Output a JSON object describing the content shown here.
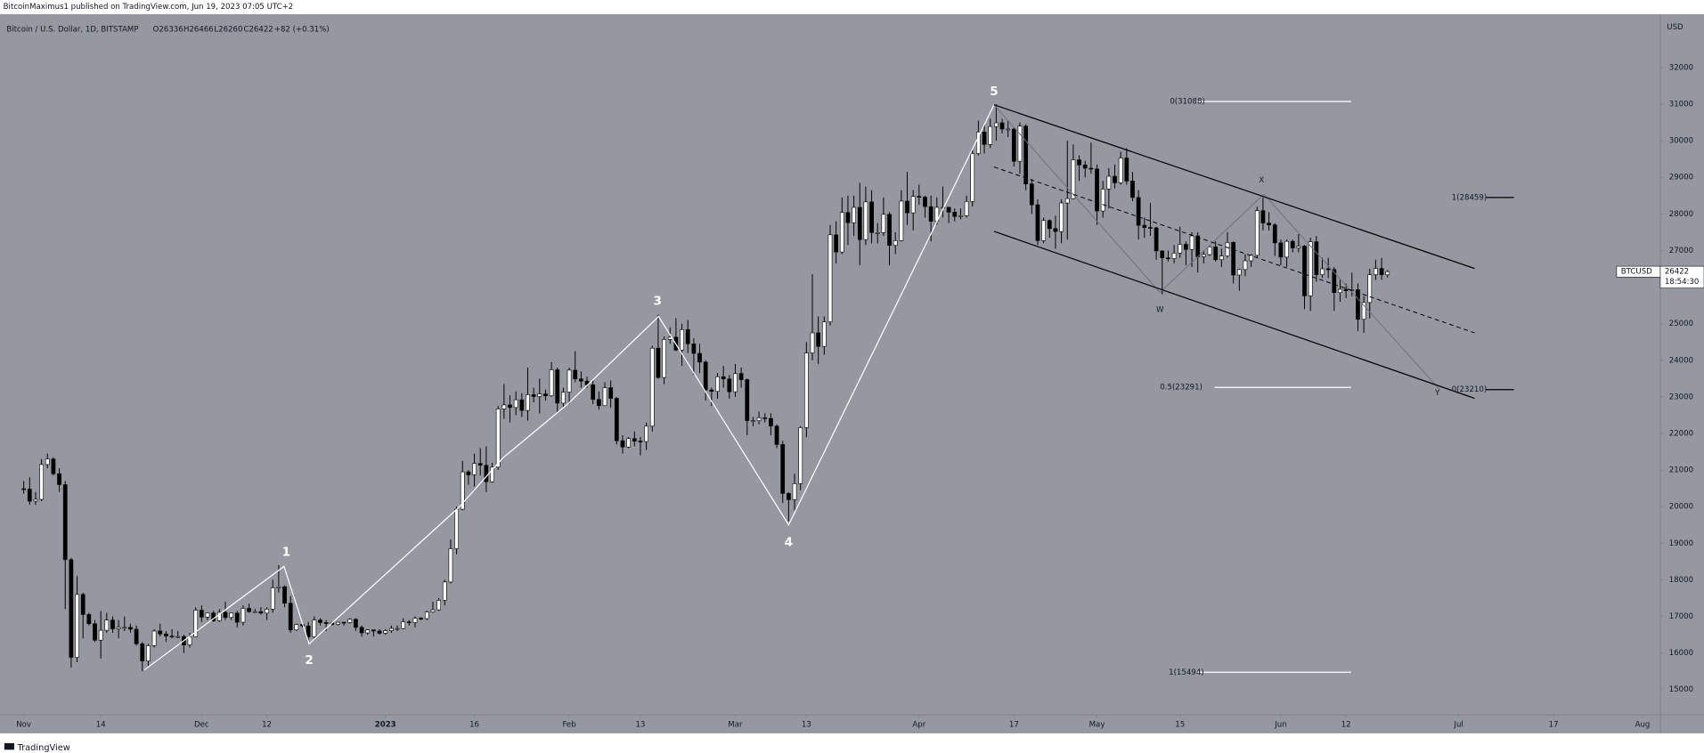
{
  "header": "BitcoinMaximus1 published on TradingView.com, Jun 19, 2023 07:05 UTC+2",
  "footer": "TradingView",
  "chart_data": {
    "type": "candlestick",
    "legend": "Bitcoin / U.S. Dollar, 1D, BITSTAMP",
    "ohlc_text": [
      "O26336",
      "H26466",
      "L26260",
      "C26422",
      "+82 (+0.31%)"
    ],
    "y_axis_label": "USD",
    "price_tag": {
      "symbol": "BTCUSD",
      "price": "26422",
      "countdown": "18:54:30"
    },
    "annotations": {
      "waves": [
        "1",
        "2",
        "3",
        "4",
        "5",
        "W",
        "X",
        "Y"
      ],
      "fibs": [
        "0(31088)",
        "1(28459)",
        "0.5(23291)",
        "0(23210)",
        "1(15494)"
      ]
    },
    "grid": false,
    "colors": {
      "up": "#ffffff",
      "down": "#000000",
      "wick": "#000000",
      "background": "#9598a1"
    },
    "xlim": [
      -4,
      276
    ],
    "xticks": [
      {
        "value": 0,
        "label": "Nov"
      },
      {
        "value": 13,
        "label": "14"
      },
      {
        "value": 30,
        "label": "Dec"
      },
      {
        "value": 41,
        "label": "12"
      },
      {
        "value": 61,
        "label": "2023"
      },
      {
        "value": 76,
        "label": "16"
      },
      {
        "value": 92,
        "label": "Feb"
      },
      {
        "value": 104,
        "label": "13"
      },
      {
        "value": 120,
        "label": "Mar"
      },
      {
        "value": 132,
        "label": "13"
      },
      {
        "value": 151,
        "label": "Apr"
      },
      {
        "value": 167,
        "label": "17"
      },
      {
        "value": 181,
        "label": "May"
      },
      {
        "value": 195,
        "label": "15"
      },
      {
        "value": 212,
        "label": "Jun"
      },
      {
        "value": 223,
        "label": "12"
      },
      {
        "value": 242,
        "label": "Jul"
      },
      {
        "value": 258,
        "label": "17"
      },
      {
        "value": 273,
        "label": "Aug"
      }
    ],
    "ylim": [
      14310,
      33460
    ],
    "yticks": [
      15000,
      16000,
      17000,
      18000,
      19000,
      20000,
      21000,
      22000,
      23000,
      24000,
      25000,
      27000,
      28000,
      29000,
      30000,
      31000,
      32000
    ],
    "candles": [
      [
        20490,
        20700,
        20350,
        20480
      ],
      [
        20480,
        20800,
        20050,
        20150
      ],
      [
        20150,
        20400,
        20050,
        20200
      ],
      [
        20200,
        21300,
        20150,
        21150
      ],
      [
        21150,
        21450,
        21050,
        21300
      ],
      [
        21300,
        21350,
        20850,
        20900
      ],
      [
        20900,
        21050,
        20400,
        20600
      ],
      [
        20600,
        20700,
        17200,
        18550
      ],
      [
        18550,
        18600,
        15600,
        15880
      ],
      [
        15880,
        18100,
        15750,
        17600
      ],
      [
        17600,
        17650,
        16400,
        17050
      ],
      [
        17050,
        17100,
        16750,
        16800
      ],
      [
        16800,
        16900,
        16300,
        16350
      ],
      [
        16350,
        17150,
        15850,
        16620
      ],
      [
        16620,
        17100,
        16550,
        16900
      ],
      [
        16900,
        17000,
        16550,
        16660
      ],
      [
        16660,
        16900,
        16400,
        16700
      ],
      [
        16700,
        17000,
        16600,
        16700
      ],
      [
        16700,
        16800,
        16550,
        16650
      ],
      [
        16650,
        16750,
        16200,
        16250
      ],
      [
        16250,
        16300,
        15500,
        15780
      ],
      [
        15780,
        16250,
        15650,
        16200
      ],
      [
        16200,
        16650,
        16150,
        16600
      ],
      [
        16600,
        16800,
        16450,
        16520
      ],
      [
        16520,
        16600,
        16300,
        16460
      ],
      [
        16460,
        16650,
        16400,
        16450
      ],
      [
        16450,
        16600,
        16400,
        16450
      ],
      [
        16450,
        16500,
        16000,
        16220
      ],
      [
        16220,
        16550,
        16150,
        16440
      ],
      [
        16440,
        17250,
        16430,
        17170
      ],
      [
        17170,
        17300,
        16850,
        16980
      ],
      [
        16980,
        17100,
        16900,
        17090
      ],
      [
        17090,
        17150,
        16850,
        16880
      ],
      [
        16880,
        17200,
        16850,
        17110
      ],
      [
        17110,
        17400,
        16900,
        16970
      ],
      [
        16970,
        17100,
        16900,
        17090
      ],
      [
        17090,
        17150,
        16700,
        16840
      ],
      [
        16840,
        17300,
        16750,
        17220
      ],
      [
        17220,
        17350,
        17100,
        17130
      ],
      [
        17130,
        17200,
        17100,
        17130
      ],
      [
        17130,
        17250,
        17050,
        17090
      ],
      [
        17090,
        17250,
        16900,
        17200
      ],
      [
        17200,
        18000,
        17100,
        17780
      ],
      [
        17780,
        18400,
        17650,
        17810
      ],
      [
        17810,
        17850,
        17250,
        17360
      ],
      [
        17360,
        17550,
        16550,
        16630
      ],
      [
        16630,
        16800,
        16600,
        16780
      ],
      [
        16780,
        16850,
        16700,
        16740
      ],
      [
        16740,
        16850,
        16300,
        16440
      ],
      [
        16440,
        17000,
        16400,
        16900
      ],
      [
        16900,
        16950,
        16750,
        16830
      ],
      [
        16830,
        16900,
        16600,
        16820
      ],
      [
        16820,
        16850,
        16750,
        16780
      ],
      [
        16780,
        16850,
        16750,
        16840
      ],
      [
        16840,
        16850,
        16750,
        16830
      ],
      [
        16830,
        16950,
        16800,
        16920
      ],
      [
        16920,
        16950,
        16600,
        16700
      ],
      [
        16700,
        16750,
        16450,
        16550
      ],
      [
        16550,
        16650,
        16500,
        16630
      ],
      [
        16630,
        16650,
        16450,
        16600
      ],
      [
        16600,
        16650,
        16500,
        16540
      ],
      [
        16540,
        16650,
        16500,
        16610
      ],
      [
        16610,
        16750,
        16550,
        16670
      ],
      [
        16670,
        16750,
        16600,
        16670
      ],
      [
        16670,
        16950,
        16650,
        16850
      ],
      [
        16850,
        16900,
        16750,
        16830
      ],
      [
        16830,
        17000,
        16700,
        16950
      ],
      [
        16950,
        16980,
        16900,
        16940
      ],
      [
        16940,
        17150,
        16900,
        17120
      ],
      [
        17120,
        17400,
        17100,
        17180
      ],
      [
        17180,
        17500,
        17150,
        17440
      ],
      [
        17440,
        18000,
        17300,
        17940
      ],
      [
        17940,
        19100,
        17900,
        18850
      ],
      [
        18850,
        20000,
        18700,
        19930
      ],
      [
        19930,
        21250,
        19900,
        20950
      ],
      [
        20950,
        21000,
        20600,
        20870
      ],
      [
        20870,
        21450,
        20550,
        21180
      ],
      [
        21180,
        21600,
        20850,
        21130
      ],
      [
        21130,
        21650,
        20400,
        20680
      ],
      [
        20680,
        21200,
        20650,
        21080
      ],
      [
        21080,
        22750,
        21000,
        22670
      ],
      [
        22670,
        23350,
        22400,
        22780
      ],
      [
        22780,
        23050,
        22300,
        22710
      ],
      [
        22710,
        23150,
        22500,
        22920
      ],
      [
        22920,
        23100,
        22450,
        22630
      ],
      [
        22630,
        23800,
        22350,
        23060
      ],
      [
        23060,
        23250,
        22850,
        23010
      ],
      [
        23010,
        23500,
        22550,
        23080
      ],
      [
        23080,
        23200,
        22900,
        23030
      ],
      [
        23030,
        23950,
        23000,
        23740
      ],
      [
        23740,
        23800,
        22550,
        22830
      ],
      [
        22830,
        23250,
        22700,
        23130
      ],
      [
        23130,
        23800,
        22800,
        23730
      ],
      [
        23730,
        24250,
        23400,
        23490
      ],
      [
        23490,
        23700,
        23250,
        23430
      ],
      [
        23430,
        23550,
        23250,
        23330
      ],
      [
        23330,
        23450,
        22800,
        22930
      ],
      [
        22930,
        23150,
        22650,
        22760
      ],
      [
        22760,
        23400,
        22750,
        23250
      ],
      [
        23250,
        23450,
        22700,
        22960
      ],
      [
        22960,
        23000,
        21700,
        21800
      ],
      [
        21800,
        21950,
        21450,
        21630
      ],
      [
        21630,
        21900,
        21600,
        21860
      ],
      [
        21860,
        22050,
        21650,
        21790
      ],
      [
        21790,
        21900,
        21400,
        21780
      ],
      [
        21780,
        22300,
        21550,
        22200
      ],
      [
        22200,
        24400,
        22050,
        24330
      ],
      [
        24330,
        25250,
        23500,
        23530
      ],
      [
        23530,
        24650,
        23350,
        24570
      ],
      [
        24570,
        24900,
        24450,
        24630
      ],
      [
        24630,
        25150,
        24250,
        24280
      ],
      [
        24280,
        25000,
        23850,
        24840
      ],
      [
        24840,
        25100,
        24200,
        24450
      ],
      [
        24450,
        24600,
        23600,
        24190
      ],
      [
        24190,
        24450,
        23650,
        23950
      ],
      [
        23950,
        24000,
        22900,
        23190
      ],
      [
        23190,
        23250,
        22750,
        23150
      ],
      [
        23150,
        23650,
        22950,
        23550
      ],
      [
        23550,
        23850,
        23250,
        23490
      ],
      [
        23490,
        23600,
        22950,
        23140
      ],
      [
        23140,
        23900,
        23000,
        23640
      ],
      [
        23640,
        23800,
        23250,
        23470
      ],
      [
        23470,
        23500,
        21950,
        22350
      ],
      [
        22350,
        22450,
        22200,
        22350
      ],
      [
        22350,
        22600,
        22250,
        22430
      ],
      [
        22430,
        22550,
        22300,
        22410
      ],
      [
        22410,
        22550,
        21950,
        22200
      ],
      [
        22200,
        22250,
        21600,
        21700
      ],
      [
        21700,
        21800,
        20100,
        20360
      ],
      [
        20360,
        20400,
        19600,
        20190
      ],
      [
        20190,
        20900,
        19900,
        20630
      ],
      [
        20630,
        22200,
        20450,
        22160
      ],
      [
        22160,
        24500,
        21900,
        24200
      ],
      [
        24200,
        26350,
        24000,
        24750
      ],
      [
        24750,
        25200,
        23900,
        24380
      ],
      [
        24380,
        25200,
        24150,
        25050
      ],
      [
        25050,
        27700,
        24950,
        27430
      ],
      [
        27430,
        27800,
        26650,
        26960
      ],
      [
        26960,
        28450,
        26900,
        28040
      ],
      [
        28040,
        28500,
        27150,
        27760
      ],
      [
        27760,
        28500,
        27400,
        28180
      ],
      [
        28180,
        28850,
        26600,
        27300
      ],
      [
        27300,
        28750,
        27150,
        28330
      ],
      [
        28330,
        28650,
        27200,
        27490
      ],
      [
        27490,
        27750,
        27200,
        27490
      ],
      [
        27490,
        28450,
        27400,
        27990
      ],
      [
        27990,
        28050,
        26600,
        27140
      ],
      [
        27140,
        27500,
        26900,
        27270
      ],
      [
        27270,
        28650,
        27250,
        28350
      ],
      [
        28350,
        29150,
        27700,
        28030
      ],
      [
        28030,
        28650,
        27550,
        28480
      ],
      [
        28480,
        28800,
        28250,
        28460
      ],
      [
        28460,
        28500,
        27900,
        28200
      ],
      [
        28200,
        28500,
        27250,
        27800
      ],
      [
        27800,
        28450,
        27700,
        28180
      ],
      [
        28180,
        28750,
        27900,
        28180
      ],
      [
        28180,
        28200,
        27750,
        28050
      ],
      [
        28050,
        28150,
        27800,
        27930
      ],
      [
        27930,
        28150,
        27850,
        27950
      ],
      [
        27950,
        28500,
        27900,
        28340
      ],
      [
        28340,
        29750,
        28200,
        29650
      ],
      [
        29650,
        30550,
        29600,
        30240
      ],
      [
        30240,
        30450,
        29650,
        29900
      ],
      [
        29900,
        30600,
        29800,
        30390
      ],
      [
        30390,
        31000,
        30000,
        30490
      ],
      [
        30490,
        30600,
        30200,
        30320
      ],
      [
        30320,
        30550,
        30100,
        30320
      ],
      [
        30320,
        30350,
        29300,
        29440
      ],
      [
        29440,
        30500,
        29100,
        30400
      ],
      [
        30400,
        30450,
        28650,
        28820
      ],
      [
        28820,
        28950,
        28000,
        28250
      ],
      [
        28250,
        28400,
        27150,
        27270
      ],
      [
        27270,
        27900,
        27200,
        27820
      ],
      [
        27820,
        27850,
        27350,
        27600
      ],
      [
        27600,
        27950,
        27050,
        27520
      ],
      [
        27520,
        28400,
        27200,
        28300
      ],
      [
        28300,
        30000,
        27300,
        28420
      ],
      [
        28420,
        29900,
        28400,
        29480
      ],
      [
        29480,
        29600,
        28900,
        29340
      ],
      [
        29340,
        29450,
        29000,
        29250
      ],
      [
        29250,
        29950,
        29100,
        29230
      ],
      [
        29230,
        29350,
        27700,
        28080
      ],
      [
        28080,
        28900,
        27900,
        28680
      ],
      [
        28680,
        29250,
        28150,
        29030
      ],
      [
        29030,
        29350,
        28700,
        28850
      ],
      [
        28850,
        29700,
        28800,
        29530
      ],
      [
        29530,
        29800,
        28800,
        28900
      ],
      [
        28900,
        29150,
        28350,
        28450
      ],
      [
        28450,
        28650,
        27300,
        27690
      ],
      [
        27690,
        27900,
        27350,
        27630
      ],
      [
        27630,
        28300,
        27400,
        27620
      ],
      [
        27620,
        27650,
        26750,
        26990
      ],
      [
        26990,
        27000,
        25800,
        26800
      ],
      [
        26800,
        27000,
        26700,
        26780
      ],
      [
        26780,
        27150,
        26650,
        26930
      ],
      [
        26930,
        27650,
        26800,
        27170
      ],
      [
        27170,
        27250,
        26600,
        27030
      ],
      [
        27030,
        27500,
        26550,
        27400
      ],
      [
        27400,
        27500,
        26400,
        26830
      ],
      [
        26830,
        27000,
        26650,
        26890
      ],
      [
        26890,
        27150,
        26850,
        27100
      ],
      [
        27100,
        27250,
        26700,
        26750
      ],
      [
        26750,
        27050,
        26550,
        26850
      ],
      [
        26850,
        27500,
        26800,
        27220
      ],
      [
        27220,
        27250,
        26100,
        26330
      ],
      [
        26330,
        26500,
        25900,
        26480
      ],
      [
        26480,
        26900,
        26300,
        26720
      ],
      [
        26720,
        26900,
        26550,
        26870
      ],
      [
        26870,
        28200,
        26800,
        28090
      ],
      [
        28090,
        28450,
        27550,
        27750
      ],
      [
        27750,
        28050,
        27550,
        27700
      ],
      [
        27700,
        27750,
        26850,
        27210
      ],
      [
        27210,
        27300,
        26600,
        26820
      ],
      [
        26820,
        27300,
        26550,
        27250
      ],
      [
        27250,
        27300,
        26950,
        27070
      ],
      [
        27070,
        27450,
        26950,
        27120
      ],
      [
        27120,
        27150,
        25400,
        25760
      ],
      [
        25760,
        27350,
        25350,
        27240
      ],
      [
        27240,
        27400,
        26150,
        26340
      ],
      [
        26340,
        26800,
        26250,
        26500
      ],
      [
        26500,
        26800,
        26250,
        26480
      ],
      [
        26480,
        26550,
        25350,
        25850
      ],
      [
        25850,
        26200,
        25600,
        25940
      ],
      [
        25940,
        26100,
        25700,
        25900
      ],
      [
        25900,
        26400,
        25750,
        25930
      ],
      [
        25930,
        26100,
        24800,
        25120
      ],
      [
        25120,
        25750,
        24750,
        25580
      ],
      [
        25580,
        26500,
        25150,
        26340
      ],
      [
        26340,
        26750,
        26200,
        26510
      ],
      [
        26510,
        26800,
        26200,
        26340
      ],
      [
        26336,
        26466,
        26260,
        26422
      ]
    ]
  }
}
